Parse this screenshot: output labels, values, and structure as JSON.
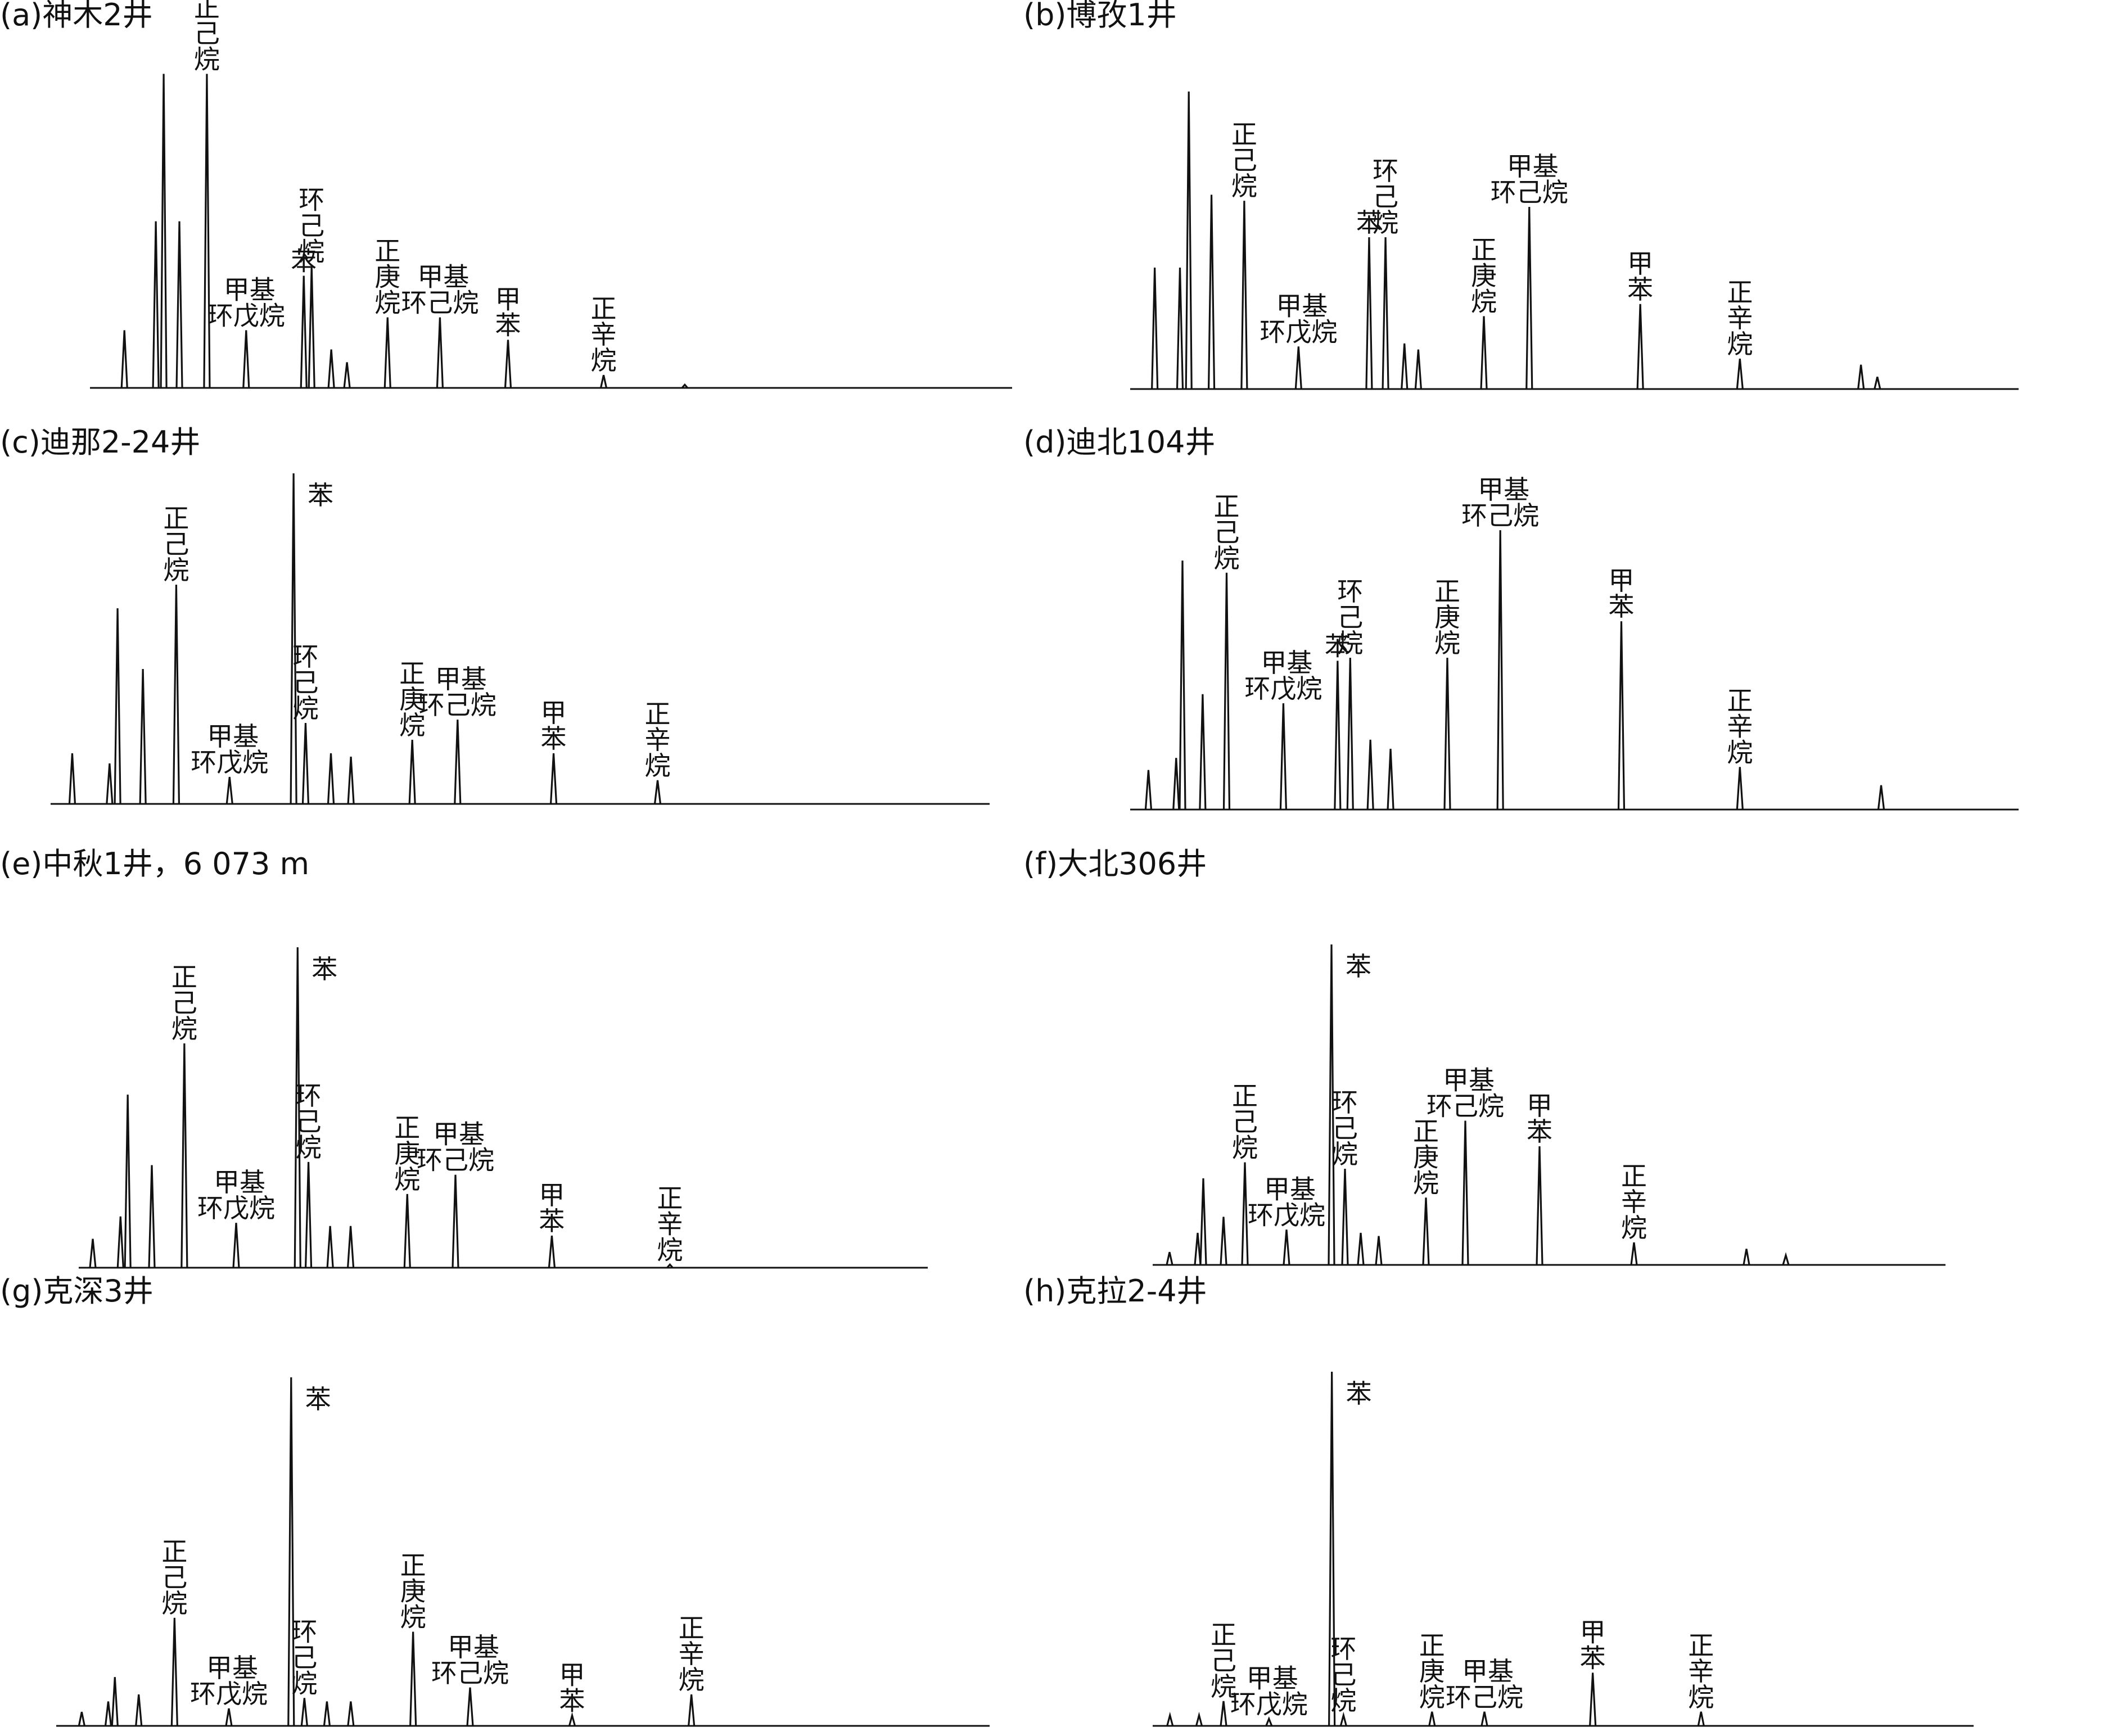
{
  "chart_data": [
    {
      "type": "line",
      "title": "(a)神木2井",
      "peaks": [
        {
          "rt": 2.2,
          "h": 18,
          "label": ""
        },
        {
          "rt": 4.6,
          "h": 52,
          "label": ""
        },
        {
          "rt": 5.2,
          "h": 98,
          "label": ""
        },
        {
          "rt": 6.4,
          "h": 52,
          "label": ""
        },
        {
          "rt": 8.5,
          "h": 98,
          "label": "正己烷",
          "layout": "v"
        },
        {
          "rt": 11.5,
          "h": 18,
          "label": "甲基环戊烷",
          "layout": "h2"
        },
        {
          "rt": 15.9,
          "h": 35,
          "label": "苯",
          "layout": "v"
        },
        {
          "rt": 16.5,
          "h": 38,
          "label": "环己烷",
          "layout": "v"
        },
        {
          "rt": 18.0,
          "h": 12,
          "label": ""
        },
        {
          "rt": 19.2,
          "h": 8,
          "label": ""
        },
        {
          "rt": 22.3,
          "h": 22,
          "label": "正庚烷",
          "layout": "v"
        },
        {
          "rt": 26.3,
          "h": 22,
          "label": "甲基环己烷",
          "layout": "h2"
        },
        {
          "rt": 31.5,
          "h": 15,
          "label": "甲苯",
          "layout": "v"
        },
        {
          "rt": 38.8,
          "h": 4,
          "label": "正辛烷",
          "layout": "v"
        },
        {
          "rt": 45.0,
          "h": 1,
          "label": ""
        }
      ]
    },
    {
      "type": "line",
      "title": "(b)博孜1井",
      "peaks": [
        {
          "rt": 1.5,
          "h": 40,
          "label": ""
        },
        {
          "rt": 3.5,
          "h": 40,
          "label": ""
        },
        {
          "rt": 4.2,
          "h": 98,
          "label": ""
        },
        {
          "rt": 6.0,
          "h": 64,
          "label": ""
        },
        {
          "rt": 8.6,
          "h": 62,
          "label": "正己烷",
          "layout": "v"
        },
        {
          "rt": 12.9,
          "h": 14,
          "label": "甲基环戊烷",
          "layout": "h2"
        },
        {
          "rt": 18.5,
          "h": 50,
          "label": "苯",
          "layout": "v"
        },
        {
          "rt": 19.8,
          "h": 50,
          "label": "环己烷",
          "layout": "v"
        },
        {
          "rt": 21.3,
          "h": 15,
          "label": ""
        },
        {
          "rt": 22.4,
          "h": 13,
          "label": ""
        },
        {
          "rt": 27.6,
          "h": 24,
          "label": "正庚烷",
          "layout": "v"
        },
        {
          "rt": 31.2,
          "h": 60,
          "label": "甲基环己烷",
          "layout": "h2"
        },
        {
          "rt": 40.0,
          "h": 28,
          "label": "甲苯",
          "layout": "v"
        },
        {
          "rt": 47.9,
          "h": 10,
          "label": "正辛烷",
          "layout": "v"
        },
        {
          "rt": 57.5,
          "h": 8,
          "label": ""
        },
        {
          "rt": 58.8,
          "h": 4,
          "label": ""
        }
      ]
    },
    {
      "type": "line",
      "title": "(c)迪那2-24井",
      "peaks": [
        {
          "rt": 1.2,
          "h": 15,
          "label": ""
        },
        {
          "rt": 4.0,
          "h": 12,
          "label": ""
        },
        {
          "rt": 4.6,
          "h": 58,
          "label": ""
        },
        {
          "rt": 6.5,
          "h": 40,
          "label": ""
        },
        {
          "rt": 9.0,
          "h": 65,
          "label": "正己烷",
          "layout": "v"
        },
        {
          "rt": 13.0,
          "h": 8,
          "label": "甲基环戊烷",
          "layout": "h2"
        },
        {
          "rt": 17.8,
          "h": 98,
          "label": "苯",
          "layout": "side"
        },
        {
          "rt": 18.7,
          "h": 24,
          "label": "环己烷",
          "layout": "v"
        },
        {
          "rt": 20.6,
          "h": 15,
          "label": ""
        },
        {
          "rt": 22.1,
          "h": 14,
          "label": ""
        },
        {
          "rt": 26.7,
          "h": 19,
          "label": "正庚烷",
          "layout": "v"
        },
        {
          "rt": 30.1,
          "h": 25,
          "label": "甲基环己烷",
          "layout": "h2"
        },
        {
          "rt": 37.3,
          "h": 15,
          "label": "甲苯",
          "layout": "v"
        },
        {
          "rt": 45.1,
          "h": 7,
          "label": "正辛烷",
          "layout": "v"
        }
      ]
    },
    {
      "type": "line",
      "title": "(d)迪北104井",
      "peaks": [
        {
          "rt": 1.0,
          "h": 13,
          "label": ""
        },
        {
          "rt": 3.2,
          "h": 17,
          "label": ""
        },
        {
          "rt": 3.7,
          "h": 82,
          "label": ""
        },
        {
          "rt": 5.3,
          "h": 38,
          "label": ""
        },
        {
          "rt": 7.2,
          "h": 78,
          "label": "正己烷",
          "layout": "v"
        },
        {
          "rt": 11.7,
          "h": 35,
          "label": "甲基环戊烷",
          "layout": "h2"
        },
        {
          "rt": 16.0,
          "h": 49,
          "label": "苯",
          "layout": "v"
        },
        {
          "rt": 17.0,
          "h": 50,
          "label": "环己烷",
          "layout": "v"
        },
        {
          "rt": 18.6,
          "h": 23,
          "label": ""
        },
        {
          "rt": 20.2,
          "h": 20,
          "label": ""
        },
        {
          "rt": 24.7,
          "h": 50,
          "label": "正庚烷",
          "layout": "v"
        },
        {
          "rt": 28.9,
          "h": 92,
          "label": "甲基环己烷",
          "layout": "h2"
        },
        {
          "rt": 38.5,
          "h": 62,
          "label": "甲苯",
          "layout": "v"
        },
        {
          "rt": 47.9,
          "h": 14,
          "label": "正辛烷",
          "layout": "v"
        },
        {
          "rt": 59.1,
          "h": 8,
          "label": ""
        }
      ]
    },
    {
      "type": "line",
      "title": "(e)中秋1井，6 073 m",
      "peaks": [
        {
          "rt": 0.7,
          "h": 9,
          "label": ""
        },
        {
          "rt": 3.0,
          "h": 16,
          "label": ""
        },
        {
          "rt": 3.6,
          "h": 54,
          "label": ""
        },
        {
          "rt": 5.6,
          "h": 32,
          "label": ""
        },
        {
          "rt": 8.3,
          "h": 70,
          "label": "正己烷",
          "layout": "v"
        },
        {
          "rt": 12.6,
          "h": 14,
          "label": "甲基环戊烷",
          "layout": "h2"
        },
        {
          "rt": 17.7,
          "h": 100,
          "label": "苯",
          "layout": "side"
        },
        {
          "rt": 18.6,
          "h": 33,
          "label": "环己烷",
          "layout": "v"
        },
        {
          "rt": 20.4,
          "h": 13,
          "label": ""
        },
        {
          "rt": 22.1,
          "h": 13,
          "label": ""
        },
        {
          "rt": 26.8,
          "h": 23,
          "label": "正庚烷",
          "layout": "v"
        },
        {
          "rt": 30.8,
          "h": 29,
          "label": "甲基环己烷",
          "layout": "h2"
        },
        {
          "rt": 38.8,
          "h": 10,
          "label": "甲苯",
          "layout": "v"
        },
        {
          "rt": 48.6,
          "h": 1,
          "label": "正辛烷",
          "layout": "v"
        }
      ]
    },
    {
      "type": "line",
      "title": "(f)大北306井",
      "peaks": [
        {
          "rt": 1.0,
          "h": 4,
          "label": ""
        },
        {
          "rt": 3.5,
          "h": 10,
          "label": ""
        },
        {
          "rt": 4.0,
          "h": 27,
          "label": ""
        },
        {
          "rt": 5.8,
          "h": 15,
          "label": ""
        },
        {
          "rt": 7.7,
          "h": 32,
          "label": "正己烷",
          "layout": "v"
        },
        {
          "rt": 11.4,
          "h": 11,
          "label": "甲基环戊烷",
          "layout": "h2"
        },
        {
          "rt": 15.4,
          "h": 100,
          "label": "苯",
          "layout": "side"
        },
        {
          "rt": 16.6,
          "h": 30,
          "label": "环己烷",
          "layout": "v"
        },
        {
          "rt": 18.0,
          "h": 10,
          "label": ""
        },
        {
          "rt": 19.6,
          "h": 9,
          "label": ""
        },
        {
          "rt": 23.8,
          "h": 21,
          "label": "正庚烷",
          "layout": "v"
        },
        {
          "rt": 27.3,
          "h": 45,
          "label": "甲基环己烷",
          "layout": "h2"
        },
        {
          "rt": 33.9,
          "h": 37,
          "label": "甲苯",
          "layout": "v"
        },
        {
          "rt": 42.3,
          "h": 7,
          "label": "正辛烷",
          "layout": "v"
        },
        {
          "rt": 52.3,
          "h": 5,
          "label": ""
        },
        {
          "rt": 55.8,
          "h": 3,
          "label": ""
        }
      ]
    },
    {
      "type": "line",
      "title": "(g)克深3井",
      "peaks": [
        {
          "rt": 1.5,
          "h": 4,
          "label": ""
        },
        {
          "rt": 3.5,
          "h": 7,
          "label": ""
        },
        {
          "rt": 4.0,
          "h": 14,
          "label": ""
        },
        {
          "rt": 5.8,
          "h": 9,
          "label": ""
        },
        {
          "rt": 8.5,
          "h": 31,
          "label": "正己烷",
          "layout": "v"
        },
        {
          "rt": 12.6,
          "h": 5,
          "label": "甲基环戊烷",
          "layout": "h2"
        },
        {
          "rt": 17.3,
          "h": 100,
          "label": "苯",
          "layout": "side"
        },
        {
          "rt": 18.3,
          "h": 8,
          "label": "环己烷",
          "layout": "v"
        },
        {
          "rt": 20.0,
          "h": 7,
          "label": ""
        },
        {
          "rt": 21.8,
          "h": 7,
          "label": ""
        },
        {
          "rt": 26.5,
          "h": 27,
          "label": "正庚烷",
          "layout": "v"
        },
        {
          "rt": 30.8,
          "h": 11,
          "label": "甲基环己烷",
          "layout": "h2"
        },
        {
          "rt": 38.5,
          "h": 3,
          "label": "甲苯",
          "layout": "v"
        },
        {
          "rt": 47.5,
          "h": 9,
          "label": "正辛烷",
          "layout": "v"
        }
      ]
    },
    {
      "type": "line",
      "title": "(h)克拉2-4井",
      "peaks": [
        {
          "rt": 1.0,
          "h": 3,
          "label": ""
        },
        {
          "rt": 3.5,
          "h": 3,
          "label": ""
        },
        {
          "rt": 5.6,
          "h": 7,
          "label": "正己烷",
          "layout": "v"
        },
        {
          "rt": 9.5,
          "h": 2,
          "label": "甲基环戊烷",
          "layout": "h2"
        },
        {
          "rt": 14.9,
          "h": 100,
          "label": "苯",
          "layout": "side"
        },
        {
          "rt": 15.9,
          "h": 3,
          "label": "环己烷",
          "layout": "v"
        },
        {
          "rt": 23.5,
          "h": 4,
          "label": "正庚烷",
          "layout": "v"
        },
        {
          "rt": 28.0,
          "h": 4,
          "label": "甲基环己烷",
          "layout": "h2"
        },
        {
          "rt": 37.3,
          "h": 15,
          "label": "甲苯",
          "layout": "v"
        },
        {
          "rt": 46.6,
          "h": 4,
          "label": "正辛烷",
          "layout": "v"
        }
      ]
    }
  ]
}
